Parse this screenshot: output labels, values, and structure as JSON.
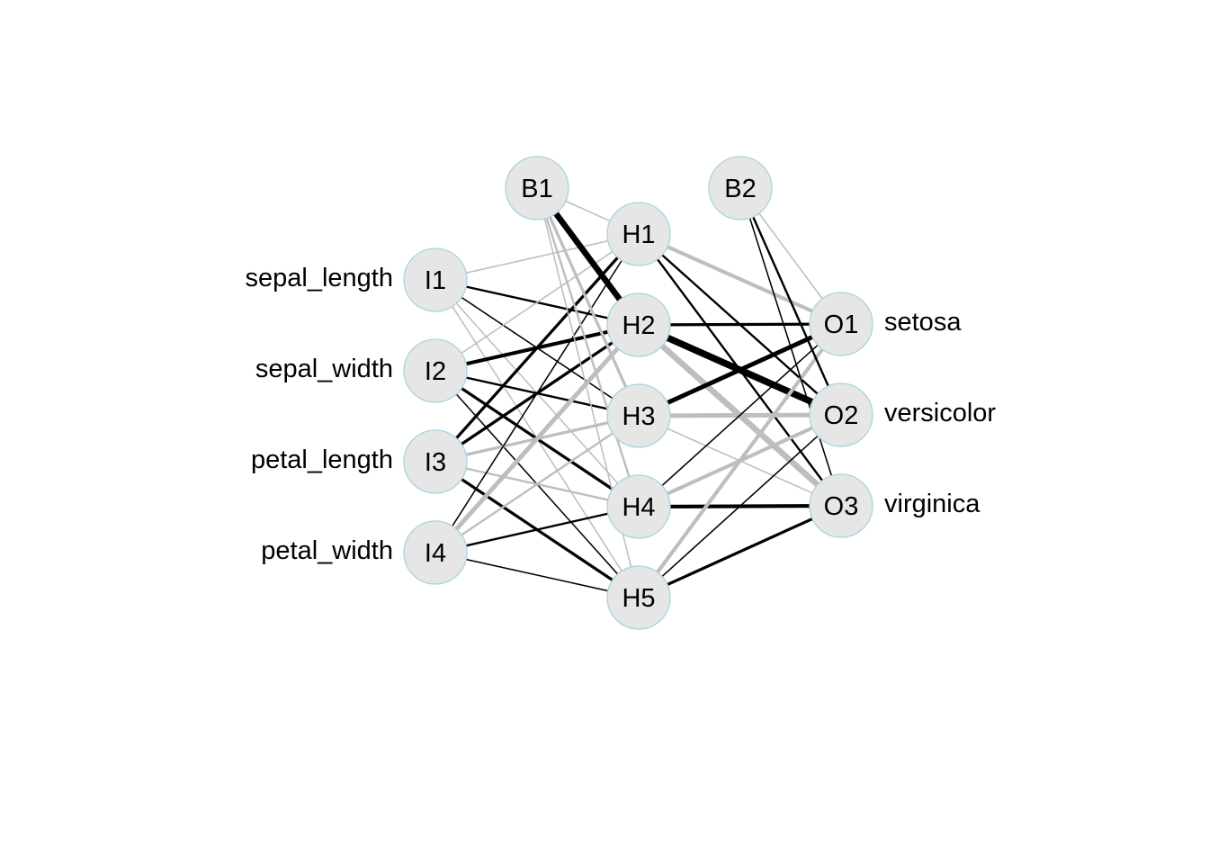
{
  "colors": {
    "positive_weight": "#000000",
    "negative_weight": "#bebebe",
    "node_fill": "#e6e6e6",
    "node_border": "#a8d4e0",
    "background": "#ffffff"
  },
  "network": {
    "input_nodes": [
      {
        "id": "I1",
        "label": "I1",
        "variable": "sepal_length"
      },
      {
        "id": "I2",
        "label": "I2",
        "variable": "sepal_width"
      },
      {
        "id": "I3",
        "label": "I3",
        "variable": "petal_length"
      },
      {
        "id": "I4",
        "label": "I4",
        "variable": "petal_width"
      }
    ],
    "hidden_nodes": [
      {
        "id": "H1",
        "label": "H1"
      },
      {
        "id": "H2",
        "label": "H2"
      },
      {
        "id": "H3",
        "label": "H3"
      },
      {
        "id": "H4",
        "label": "H4"
      },
      {
        "id": "H5",
        "label": "H5"
      }
    ],
    "output_nodes": [
      {
        "id": "O1",
        "label": "O1",
        "variable": "setosa"
      },
      {
        "id": "O2",
        "label": "O2",
        "variable": "versicolor"
      },
      {
        "id": "O3",
        "label": "O3",
        "variable": "virginica"
      }
    ],
    "bias_nodes": [
      {
        "id": "B1",
        "label": "B1"
      },
      {
        "id": "B2",
        "label": "B2"
      }
    ],
    "connections": [
      {
        "from": "I1",
        "to": "H1",
        "sign": "negative",
        "strength": 1
      },
      {
        "from": "I1",
        "to": "H2",
        "sign": "positive",
        "strength": 2
      },
      {
        "from": "I1",
        "to": "H3",
        "sign": "positive",
        "strength": 1
      },
      {
        "from": "I1",
        "to": "H4",
        "sign": "negative",
        "strength": 1
      },
      {
        "from": "I1",
        "to": "H5",
        "sign": "negative",
        "strength": 1
      },
      {
        "from": "I2",
        "to": "H1",
        "sign": "negative",
        "strength": 1
      },
      {
        "from": "I2",
        "to": "H2",
        "sign": "positive",
        "strength": 4
      },
      {
        "from": "I2",
        "to": "H3",
        "sign": "positive",
        "strength": 2
      },
      {
        "from": "I2",
        "to": "H4",
        "sign": "positive",
        "strength": 3
      },
      {
        "from": "I2",
        "to": "H5",
        "sign": "positive",
        "strength": 1
      },
      {
        "from": "I3",
        "to": "H1",
        "sign": "positive",
        "strength": 3
      },
      {
        "from": "I3",
        "to": "H2",
        "sign": "positive",
        "strength": 3
      },
      {
        "from": "I3",
        "to": "H3",
        "sign": "negative",
        "strength": 3
      },
      {
        "from": "I3",
        "to": "H4",
        "sign": "negative",
        "strength": 2
      },
      {
        "from": "I3",
        "to": "H5",
        "sign": "positive",
        "strength": 3
      },
      {
        "from": "I4",
        "to": "H1",
        "sign": "positive",
        "strength": 1
      },
      {
        "from": "I4",
        "to": "H2",
        "sign": "negative",
        "strength": 5
      },
      {
        "from": "I4",
        "to": "H3",
        "sign": "negative",
        "strength": 2
      },
      {
        "from": "I4",
        "to": "H4",
        "sign": "positive",
        "strength": 2
      },
      {
        "from": "I4",
        "to": "H5",
        "sign": "positive",
        "strength": 1
      },
      {
        "from": "B1",
        "to": "H1",
        "sign": "negative",
        "strength": 1
      },
      {
        "from": "B1",
        "to": "H2",
        "sign": "positive",
        "strength": 7
      },
      {
        "from": "B1",
        "to": "H3",
        "sign": "negative",
        "strength": 3
      },
      {
        "from": "B1",
        "to": "H4",
        "sign": "negative",
        "strength": 2
      },
      {
        "from": "B1",
        "to": "H5",
        "sign": "negative",
        "strength": 1
      },
      {
        "from": "H1",
        "to": "O1",
        "sign": "negative",
        "strength": 4
      },
      {
        "from": "H1",
        "to": "O2",
        "sign": "positive",
        "strength": 2
      },
      {
        "from": "H1",
        "to": "O3",
        "sign": "positive",
        "strength": 2
      },
      {
        "from": "H2",
        "to": "O1",
        "sign": "positive",
        "strength": 3
      },
      {
        "from": "H2",
        "to": "O2",
        "sign": "positive",
        "strength": 8
      },
      {
        "from": "H2",
        "to": "O3",
        "sign": "negative",
        "strength": 7
      },
      {
        "from": "H3",
        "to": "O1",
        "sign": "positive",
        "strength": 5
      },
      {
        "from": "H3",
        "to": "O2",
        "sign": "negative",
        "strength": 5
      },
      {
        "from": "H3",
        "to": "O3",
        "sign": "negative",
        "strength": 1
      },
      {
        "from": "H4",
        "to": "O1",
        "sign": "positive",
        "strength": 1
      },
      {
        "from": "H4",
        "to": "O2",
        "sign": "negative",
        "strength": 4
      },
      {
        "from": "H4",
        "to": "O3",
        "sign": "positive",
        "strength": 4
      },
      {
        "from": "H5",
        "to": "O1",
        "sign": "negative",
        "strength": 4
      },
      {
        "from": "H5",
        "to": "O2",
        "sign": "positive",
        "strength": 1
      },
      {
        "from": "H5",
        "to": "O3",
        "sign": "positive",
        "strength": 3
      },
      {
        "from": "B2",
        "to": "O1",
        "sign": "negative",
        "strength": 1
      },
      {
        "from": "B2",
        "to": "O2",
        "sign": "positive",
        "strength": 2
      },
      {
        "from": "B2",
        "to": "O3",
        "sign": "positive",
        "strength": 1
      }
    ]
  }
}
